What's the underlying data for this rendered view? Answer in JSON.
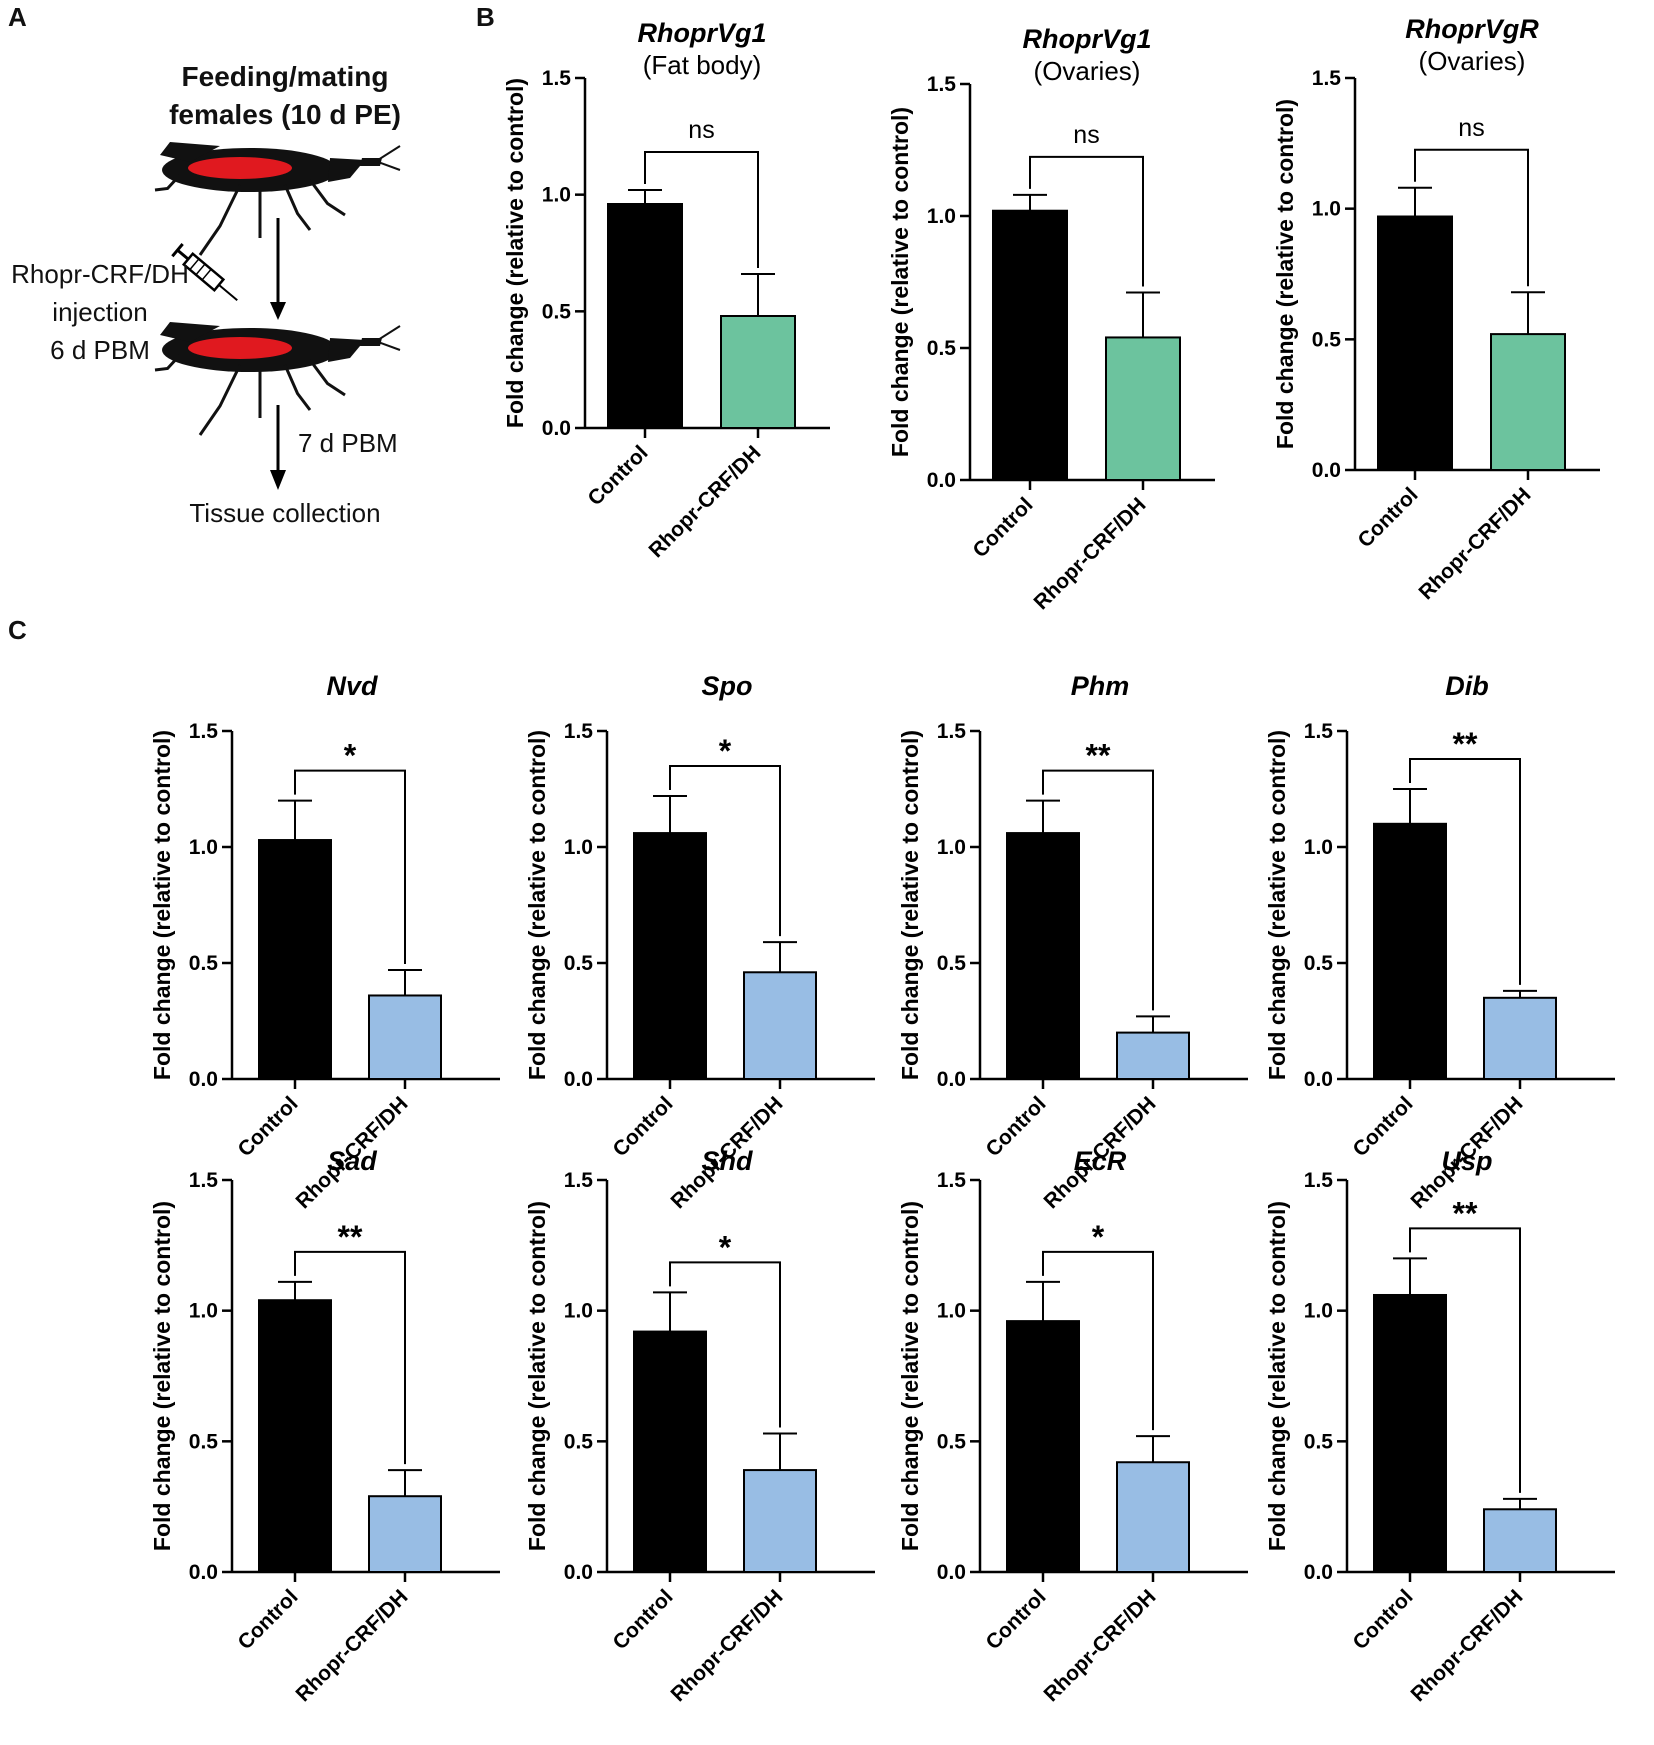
{
  "panel_labels": {
    "a": "A",
    "b": "B",
    "c": "C"
  },
  "scheme": {
    "title_line1": "Feeding/mating",
    "title_line2": "females (10 d PE)",
    "injection_line1": "Rhopr-CRF/DH",
    "injection_line2": "injection",
    "injection_line3": "6 d PBM",
    "wait_label": "7 d PBM",
    "end_label": "Tissue collection",
    "bug_color": "#111111",
    "abdomen_color": "#e0191f"
  },
  "colors": {
    "control": "#000000",
    "treatment_b": "#6cc39e",
    "treatment_c": "#98bde4"
  },
  "chart_data": [
    {
      "type": "bar",
      "panel": "B",
      "title": "RhoprVg1",
      "subtitle": "(Fat body)",
      "categories": [
        "Control",
        "Rhopr-CRF/DH"
      ],
      "values": [
        0.96,
        0.48
      ],
      "errors": [
        0.06,
        0.18
      ],
      "ylabel": "Fold change (relative to control)",
      "ylim": [
        0,
        1.5
      ],
      "yticks": [
        "0.0",
        "0.5",
        "1.0",
        "1.5"
      ],
      "significance": "ns"
    },
    {
      "type": "bar",
      "panel": "B",
      "title": "RhoprVg1",
      "subtitle": "(Ovaries)",
      "categories": [
        "Control",
        "Rhopr-CRF/DH"
      ],
      "values": [
        1.02,
        0.54
      ],
      "errors": [
        0.06,
        0.17
      ],
      "ylabel": "Fold change (relative to control)",
      "ylim": [
        0,
        1.5
      ],
      "yticks": [
        "0.0",
        "0.5",
        "1.0",
        "1.5"
      ],
      "significance": "ns"
    },
    {
      "type": "bar",
      "panel": "B",
      "title": "RhoprVgR",
      "subtitle": "(Ovaries)",
      "categories": [
        "Control",
        "Rhopr-CRF/DH"
      ],
      "values": [
        0.97,
        0.52
      ],
      "errors": [
        0.11,
        0.16
      ],
      "ylabel": "Fold change (relative to control)",
      "ylim": [
        0,
        1.5
      ],
      "yticks": [
        "0.0",
        "0.5",
        "1.0",
        "1.5"
      ],
      "significance": "ns"
    },
    {
      "type": "bar",
      "panel": "C",
      "title": "Nvd",
      "categories": [
        "Control",
        "Rhopr-CRF/DH"
      ],
      "values": [
        1.03,
        0.36
      ],
      "errors": [
        0.17,
        0.11
      ],
      "ylabel": "Fold change (relative to control)",
      "ylim": [
        0,
        1.5
      ],
      "yticks": [
        "0.0",
        "0.5",
        "1.0",
        "1.5"
      ],
      "significance": "*"
    },
    {
      "type": "bar",
      "panel": "C",
      "title": "Spo",
      "categories": [
        "Control",
        "Rhopr-CRF/DH"
      ],
      "values": [
        1.06,
        0.46
      ],
      "errors": [
        0.16,
        0.13
      ],
      "ylabel": "Fold change (relative to control)",
      "ylim": [
        0,
        1.5
      ],
      "yticks": [
        "0.0",
        "0.5",
        "1.0",
        "1.5"
      ],
      "significance": "*"
    },
    {
      "type": "bar",
      "panel": "C",
      "title": "Phm",
      "categories": [
        "Control",
        "Rhopr-CRF/DH"
      ],
      "values": [
        1.06,
        0.2
      ],
      "errors": [
        0.14,
        0.07
      ],
      "ylabel": "Fold change (relative to control)",
      "ylim": [
        0,
        1.5
      ],
      "yticks": [
        "0.0",
        "0.5",
        "1.0",
        "1.5"
      ],
      "significance": "**"
    },
    {
      "type": "bar",
      "panel": "C",
      "title": "Dib",
      "categories": [
        "Control",
        "Rhopr-CRF/DH"
      ],
      "values": [
        1.1,
        0.35
      ],
      "errors": [
        0.15,
        0.03
      ],
      "ylabel": "Fold change (relative to control)",
      "ylim": [
        0,
        1.5
      ],
      "yticks": [
        "0.0",
        "0.5",
        "1.0",
        "1.5"
      ],
      "significance": "**"
    },
    {
      "type": "bar",
      "panel": "C",
      "title": "Sad",
      "categories": [
        "Control",
        "Rhopr-CRF/DH"
      ],
      "values": [
        1.04,
        0.29
      ],
      "errors": [
        0.07,
        0.1
      ],
      "ylabel": "Fold change (relative to control)",
      "ylim": [
        0,
        1.5
      ],
      "yticks": [
        "0.0",
        "0.5",
        "1.0",
        "1.5"
      ],
      "significance": "**"
    },
    {
      "type": "bar",
      "panel": "C",
      "title": "Shd",
      "categories": [
        "Control",
        "Rhopr-CRF/DH"
      ],
      "values": [
        0.92,
        0.39
      ],
      "errors": [
        0.15,
        0.14
      ],
      "ylabel": "Fold change (relative to control)",
      "ylim": [
        0,
        1.5
      ],
      "yticks": [
        "0.0",
        "0.5",
        "1.0",
        "1.5"
      ],
      "significance": "*"
    },
    {
      "type": "bar",
      "panel": "C",
      "title": "EcR",
      "categories": [
        "Control",
        "Rhopr-CRF/DH"
      ],
      "values": [
        0.96,
        0.42
      ],
      "errors": [
        0.15,
        0.1
      ],
      "ylabel": "Fold change (relative to control)",
      "ylim": [
        0,
        1.5
      ],
      "yticks": [
        "0.0",
        "0.5",
        "1.0",
        "1.5"
      ],
      "significance": "*"
    },
    {
      "type": "bar",
      "panel": "C",
      "title": "Usp",
      "categories": [
        "Control",
        "Rhopr-CRF/DH"
      ],
      "values": [
        1.06,
        0.24
      ],
      "errors": [
        0.14,
        0.04
      ],
      "ylabel": "Fold change (relative to control)",
      "ylim": [
        0,
        1.5
      ],
      "yticks": [
        "0.0",
        "0.5",
        "1.0",
        "1.5"
      ],
      "significance": "**"
    }
  ]
}
